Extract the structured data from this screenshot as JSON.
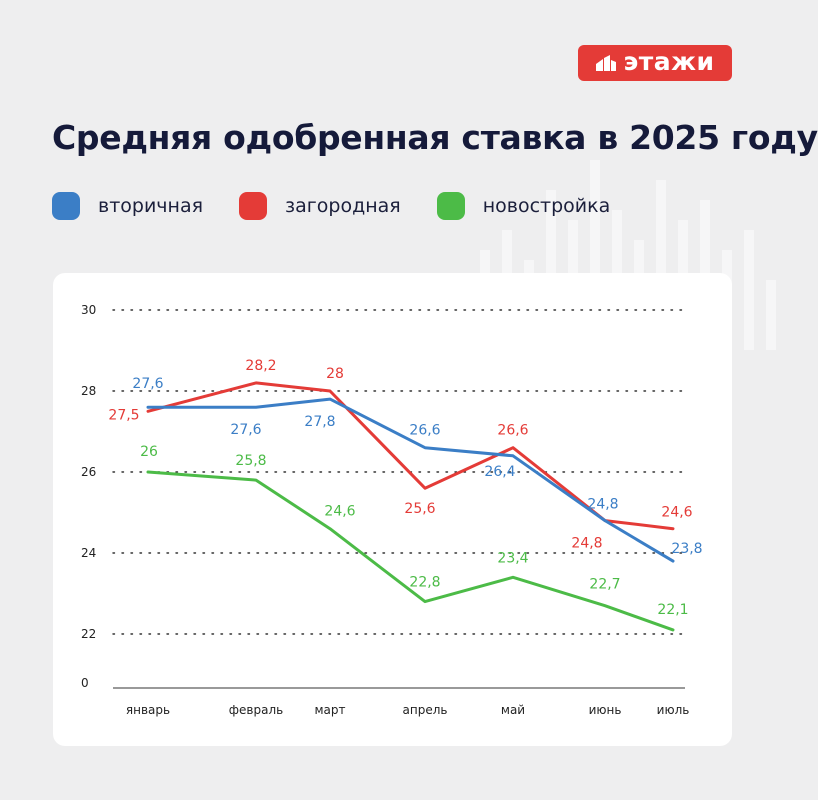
{
  "brand": {
    "name": "этажи",
    "color": "#e43b37"
  },
  "title": "Средняя одобренная ставка в 2025 году",
  "chart_data": {
    "type": "line",
    "title": "Средняя одобренная ставка в 2025 году",
    "xlabel": "",
    "ylabel": "",
    "categories": [
      "январь",
      "февраль",
      "март",
      "апрель",
      "май",
      "июнь",
      "июль"
    ],
    "y_ticks": [
      "0",
      "22",
      "24",
      "26",
      "28",
      "30"
    ],
    "ylim": [
      22,
      30
    ],
    "y_axis_break": true,
    "grid": true,
    "legend_position": "top",
    "series": [
      {
        "name": "вторичная",
        "color": "#3b7ec6",
        "values": [
          27.6,
          27.6,
          27.8,
          26.6,
          26.4,
          24.8,
          23.8
        ],
        "labels": [
          "27,6",
          "27,6",
          "27,8",
          "26,6",
          "26,4",
          "24,8",
          "23,8"
        ]
      },
      {
        "name": "загородная",
        "color": "#e43b37",
        "values": [
          27.5,
          28.2,
          28,
          25.6,
          26.6,
          24.8,
          24.6
        ],
        "labels": [
          "27,5",
          "28,2",
          "28",
          "25,6",
          "26,6",
          "24,8",
          "24,6"
        ]
      },
      {
        "name": "новостройка",
        "color": "#4cbb47",
        "values": [
          26,
          25.8,
          24.6,
          22.8,
          23.4,
          22.7,
          22.1
        ],
        "labels": [
          "26",
          "25,8",
          "24,6",
          "22,8",
          "23,4",
          "22,7",
          "22,1"
        ]
      }
    ]
  }
}
